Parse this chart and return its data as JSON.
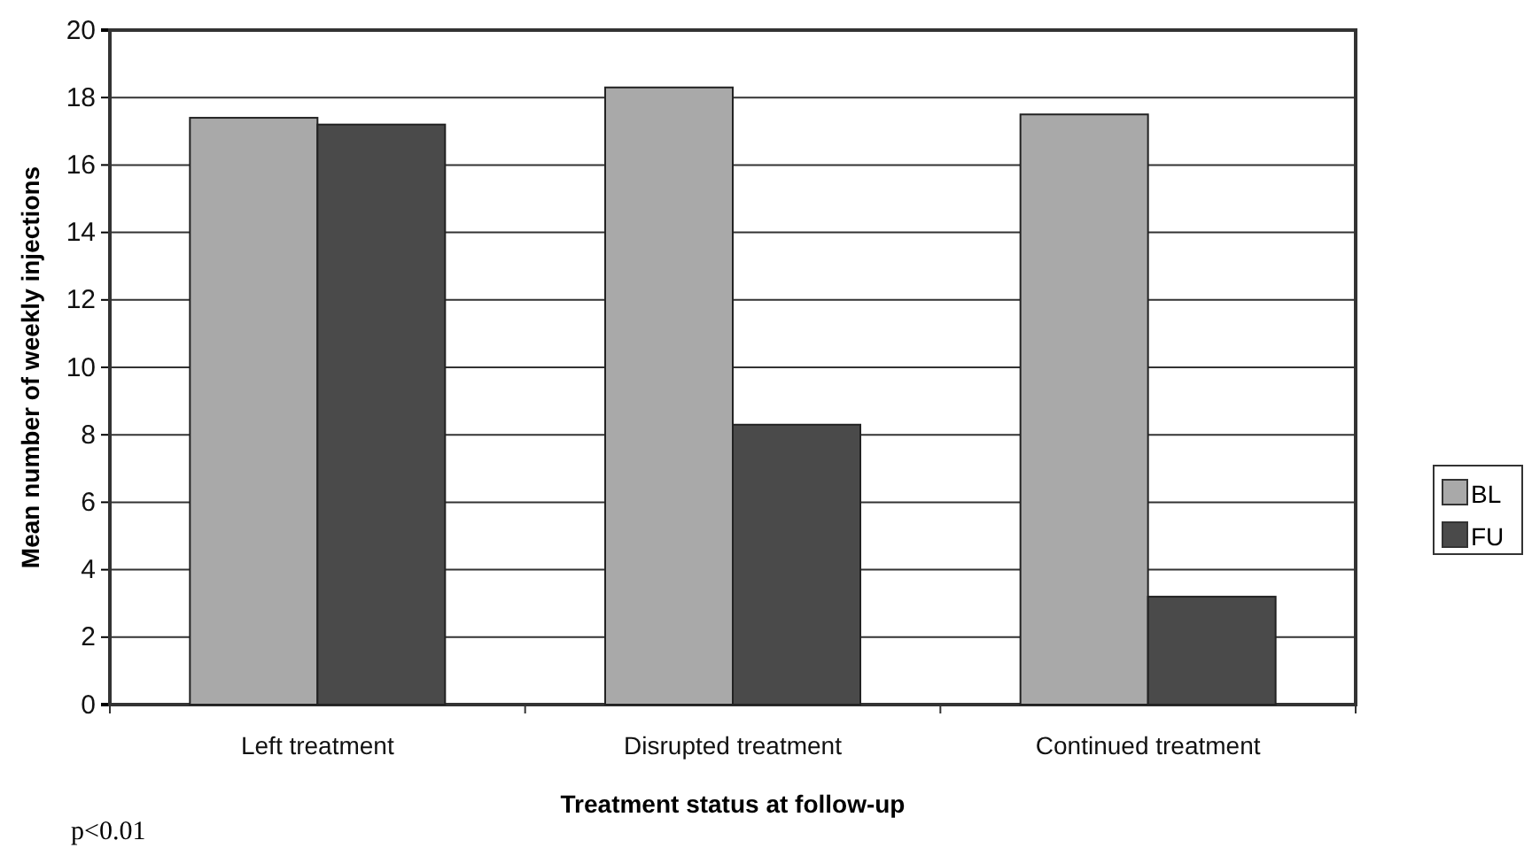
{
  "chart_data": {
    "type": "bar",
    "xlabel": "Treatment status at follow-up",
    "ylabel": "Mean number of weekly injections",
    "categories": [
      "Left treatment",
      "Disrupted treatment",
      "Continued treatment"
    ],
    "series": [
      {
        "name": "BL",
        "color": "#a9a9a9",
        "values": [
          17.4,
          18.3,
          17.5
        ]
      },
      {
        "name": "FU",
        "color": "#4a4a4a",
        "values": [
          17.2,
          8.3,
          3.2
        ]
      }
    ],
    "ylim": [
      0,
      20
    ],
    "yticks": [
      0,
      2,
      4,
      6,
      8,
      10,
      12,
      14,
      16,
      18,
      20
    ],
    "grid": "y",
    "legend": "right",
    "annotations": [
      "p<0.01"
    ]
  }
}
